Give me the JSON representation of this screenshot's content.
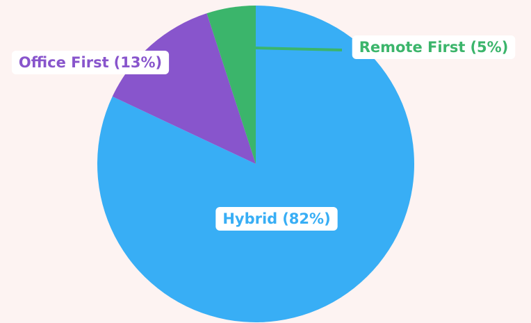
{
  "chart_data": {
    "type": "pie",
    "categories": [
      "Hybrid",
      "Office First",
      "Remote First"
    ],
    "values": [
      82,
      13,
      5
    ],
    "value_labels": [
      "(82%)",
      "(13%)",
      "(5%)"
    ],
    "colors": [
      "#38aef5",
      "#8855cc",
      "#3bb56b"
    ]
  }
}
